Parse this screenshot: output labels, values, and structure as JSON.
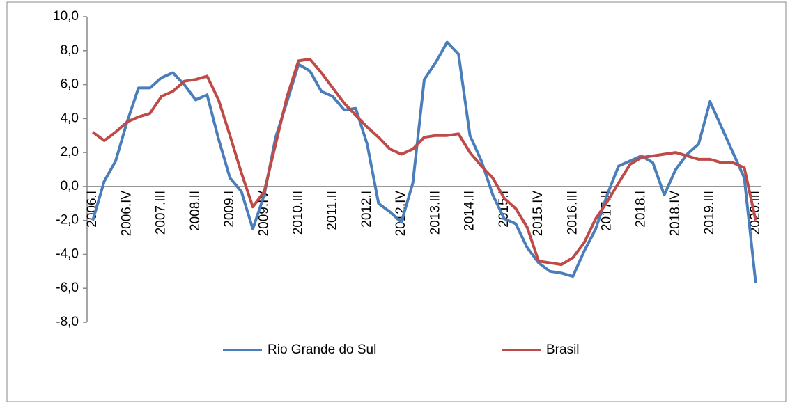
{
  "chart_data": {
    "type": "line",
    "categories": [
      "2006.I",
      null,
      null,
      "2006.IV",
      null,
      null,
      "2007.III",
      null,
      null,
      "2008.II",
      null,
      null,
      "2009.I",
      null,
      null,
      "2009.IV",
      null,
      null,
      "2010.III",
      null,
      null,
      "2011.II",
      null,
      null,
      "2012.I",
      null,
      null,
      "2012.IV",
      null,
      null,
      "2013.III",
      null,
      null,
      "2014.II",
      null,
      null,
      "2015.I",
      null,
      null,
      "2015.IV",
      null,
      null,
      "2016.III",
      null,
      null,
      "2017.II",
      null,
      null,
      "2018.I",
      null,
      null,
      "2018.IV",
      null,
      null,
      "2019.III",
      null,
      null,
      null,
      "2020.III"
    ],
    "series": [
      {
        "name": "Rio Grande do Sul",
        "color": "#4a7ebb",
        "values": [
          -2.0,
          0.3,
          1.5,
          3.8,
          5.8,
          5.8,
          6.4,
          6.7,
          6.0,
          5.1,
          5.4,
          2.8,
          0.5,
          -0.3,
          -2.5,
          -0.5,
          2.9,
          5.0,
          7.2,
          6.8,
          5.6,
          5.3,
          4.5,
          4.6,
          2.5,
          -1.0,
          -1.5,
          -2.1,
          0.2,
          6.3,
          7.3,
          8.5,
          7.8,
          3.0,
          1.5,
          -0.5,
          -1.9,
          -2.2,
          -3.6,
          -4.5,
          -5.0,
          -5.1,
          -5.3,
          -3.8,
          -2.5,
          -0.5,
          1.2,
          1.5,
          1.8,
          1.4,
          -0.5,
          1.0,
          1.9,
          2.5,
          5.0,
          3.5,
          2.0,
          0.5,
          -5.7
        ]
      },
      {
        "name": "Brasil",
        "color": "#be4b48",
        "values": [
          3.2,
          2.7,
          3.2,
          3.8,
          4.1,
          4.3,
          5.3,
          5.6,
          6.2,
          6.3,
          6.5,
          5.1,
          3.0,
          0.8,
          -1.2,
          -0.3,
          2.5,
          5.3,
          7.4,
          7.5,
          6.7,
          5.8,
          4.9,
          4.2,
          3.5,
          2.9,
          2.2,
          1.9,
          2.2,
          2.9,
          3.0,
          3.0,
          3.1,
          2.0,
          1.2,
          0.5,
          -0.7,
          -1.3,
          -2.4,
          -4.4,
          -4.5,
          -4.6,
          -4.2,
          -3.3,
          -1.9,
          -0.9,
          0.2,
          1.3,
          1.7,
          1.8,
          1.9,
          2.0,
          1.8,
          1.6,
          1.6,
          1.4,
          1.4,
          1.1,
          -2.0
        ]
      }
    ],
    "ylim": [
      -8,
      10
    ],
    "yticks": [
      {
        "value": -8,
        "label": "-8,0"
      },
      {
        "value": -6,
        "label": "-6,0"
      },
      {
        "value": -4,
        "label": "-4,0"
      },
      {
        "value": -2,
        "label": "-2,0"
      },
      {
        "value": 0,
        "label": "0,0"
      },
      {
        "value": 2,
        "label": "2,0"
      },
      {
        "value": 4,
        "label": "4,0"
      },
      {
        "value": 6,
        "label": "6,0"
      },
      {
        "value": 8,
        "label": "8,0"
      },
      {
        "value": 10,
        "label": "10,0"
      }
    ],
    "grid": false,
    "legend": "bottom"
  }
}
